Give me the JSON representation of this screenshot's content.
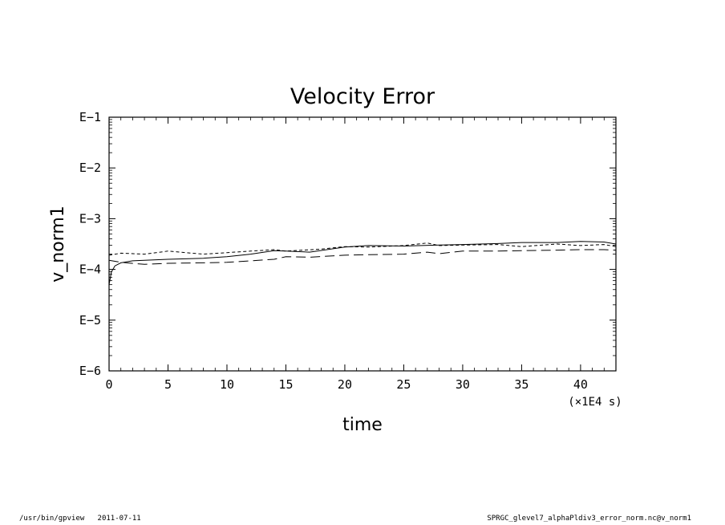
{
  "chart_data": {
    "type": "line",
    "title": "Velocity Error",
    "xlabel": "time",
    "ylabel": "v_norm1",
    "x_units": "(×1E4 s)",
    "xlim": [
      0,
      43
    ],
    "ylim_log10": [
      -6,
      -1
    ],
    "y_scale": "log",
    "x_ticks": [
      0,
      5,
      10,
      15,
      20,
      25,
      30,
      35,
      40
    ],
    "y_ticks": [
      {
        "exp": -1,
        "label": "E−1"
      },
      {
        "exp": -2,
        "label": "E−2"
      },
      {
        "exp": -3,
        "label": "E−3"
      },
      {
        "exp": -4,
        "label": "E−4"
      },
      {
        "exp": -5,
        "label": "E−5"
      },
      {
        "exp": -6,
        "label": "E−6"
      }
    ],
    "grid": false,
    "series": [
      {
        "dash": "solid",
        "x": [
          0,
          0.2,
          0.5,
          1,
          2,
          3,
          5,
          8,
          10,
          12,
          14,
          15,
          17,
          20,
          22,
          25,
          28,
          30,
          33,
          35,
          38,
          40,
          42,
          43
        ],
        "log10_y": [
          -4.3,
          -4.05,
          -3.93,
          -3.87,
          -3.83,
          -3.82,
          -3.8,
          -3.78,
          -3.75,
          -3.7,
          -3.63,
          -3.64,
          -3.66,
          -3.56,
          -3.53,
          -3.54,
          -3.52,
          -3.51,
          -3.49,
          -3.47,
          -3.47,
          -3.45,
          -3.46,
          -3.5
        ]
      },
      {
        "dash": "short-dash",
        "x": [
          0,
          1,
          3,
          5,
          8,
          10,
          12,
          14,
          15,
          18,
          20,
          22,
          25,
          27,
          28,
          30,
          33,
          35,
          38,
          40,
          42,
          43
        ],
        "log10_y": [
          -3.72,
          -3.68,
          -3.7,
          -3.64,
          -3.7,
          -3.67,
          -3.64,
          -3.61,
          -3.64,
          -3.6,
          -3.55,
          -3.56,
          -3.53,
          -3.48,
          -3.53,
          -3.52,
          -3.51,
          -3.55,
          -3.5,
          -3.53,
          -3.51,
          -3.55
        ]
      },
      {
        "dash": "long-dash",
        "x": [
          0,
          1,
          3,
          5,
          8,
          10,
          12,
          14,
          15,
          17,
          20,
          22,
          25,
          27,
          28,
          30,
          33,
          35,
          38,
          40,
          42,
          43
        ],
        "log10_y": [
          -3.82,
          -3.86,
          -3.9,
          -3.88,
          -3.87,
          -3.86,
          -3.83,
          -3.8,
          -3.75,
          -3.76,
          -3.72,
          -3.71,
          -3.7,
          -3.66,
          -3.69,
          -3.64,
          -3.64,
          -3.63,
          -3.62,
          -3.61,
          -3.61,
          -3.62
        ]
      }
    ]
  },
  "footer": {
    "left": "/usr/bin/gpview   2011-07-11",
    "right": "SPRGC_glevel7_alphaPldiv3_error_norm.nc@v_norm1"
  }
}
